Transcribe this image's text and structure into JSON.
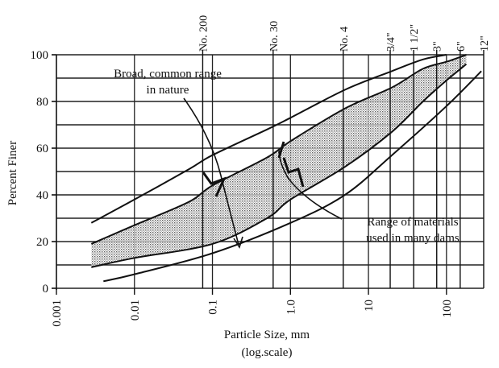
{
  "chart_data": {
    "type": "area",
    "xlabel": "Particle Size, mm",
    "xlabel_note": "(log.scale)",
    "ylabel": "Percent Finer",
    "x_scale": "log",
    "xlim": [
      0.001,
      300
    ],
    "ylim": [
      0,
      100
    ],
    "grid": true,
    "x_ticks": [
      {
        "value": 0.001,
        "label": "0.001"
      },
      {
        "value": 0.01,
        "label": "0.01"
      },
      {
        "value": 0.1,
        "label": "0.1"
      },
      {
        "value": 1,
        "label": "1.0"
      },
      {
        "value": 10,
        "label": "10"
      },
      {
        "value": 100,
        "label": "100"
      }
    ],
    "y_ticks": [
      0,
      20,
      40,
      60,
      80,
      100
    ],
    "sieve_ticks": [
      {
        "value": 0.075,
        "label": "No. 200"
      },
      {
        "value": 0.6,
        "label": "No. 30"
      },
      {
        "value": 4.75,
        "label": "No. 4"
      },
      {
        "value": 19,
        "label": "3/4\""
      },
      {
        "value": 38,
        "label": "1 1/2\""
      },
      {
        "value": 75,
        "label": "3\""
      },
      {
        "value": 150,
        "label": "6\""
      },
      {
        "value": 300,
        "label": "12\""
      }
    ],
    "curves": {
      "broad_upper": [
        [
          0.0028,
          28
        ],
        [
          0.01,
          38
        ],
        [
          0.05,
          51
        ],
        [
          0.1,
          57
        ],
        [
          0.5,
          68
        ],
        [
          1.0,
          73
        ],
        [
          5,
          85
        ],
        [
          20,
          93
        ],
        [
          50,
          98
        ],
        [
          100,
          100
        ]
      ],
      "broad_lower": [
        [
          0.004,
          3
        ],
        [
          0.01,
          6
        ],
        [
          0.1,
          15
        ],
        [
          1.0,
          28
        ],
        [
          5,
          40
        ],
        [
          20,
          57
        ],
        [
          100,
          78
        ],
        [
          280,
          93
        ]
      ],
      "dam_upper": [
        [
          0.0028,
          19
        ],
        [
          0.01,
          27
        ],
        [
          0.05,
          37
        ],
        [
          0.1,
          44
        ],
        [
          0.5,
          56
        ],
        [
          1.0,
          63
        ],
        [
          5,
          77
        ],
        [
          20,
          86
        ],
        [
          50,
          94
        ],
        [
          100,
          97
        ],
        [
          180,
          100
        ]
      ],
      "dam_lower": [
        [
          0.0028,
          9
        ],
        [
          0.01,
          13
        ],
        [
          0.1,
          19
        ],
        [
          0.5,
          30
        ],
        [
          1.0,
          38
        ],
        [
          5,
          52
        ],
        [
          20,
          67
        ],
        [
          50,
          80
        ],
        [
          100,
          89
        ],
        [
          180,
          96
        ]
      ]
    },
    "annotations": [
      {
        "text": "Broad, common range",
        "line2": "in nature"
      },
      {
        "text": "Range of materials",
        "line2": "used in many dams"
      }
    ]
  }
}
